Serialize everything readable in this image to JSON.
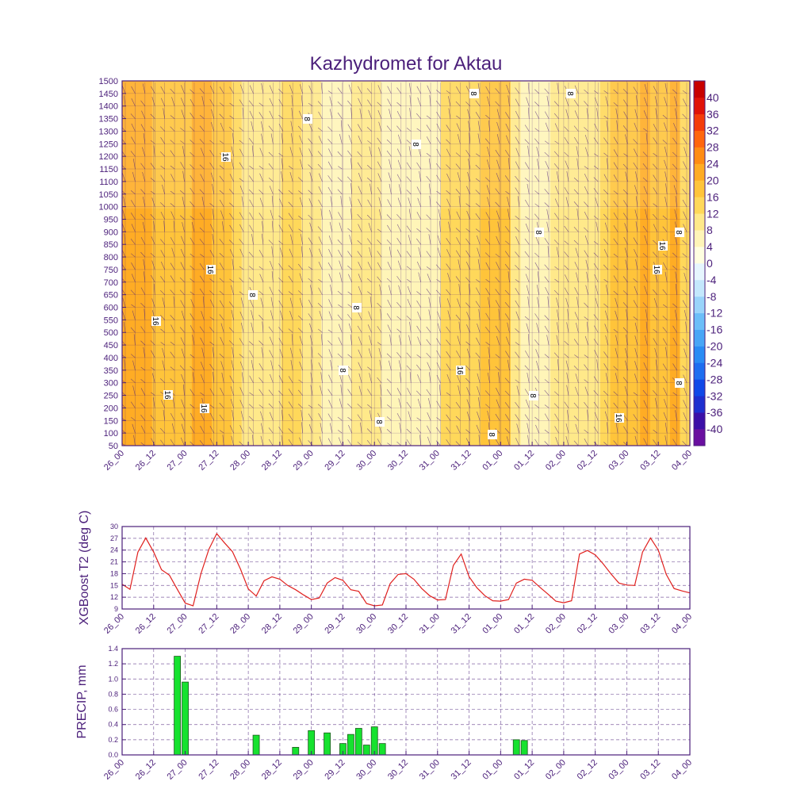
{
  "title": "Kazhydromet for Aktau",
  "colors": {
    "frame": "#4b1f7a",
    "text": "#4b1f7a",
    "grid": "#4b1f7a",
    "t2_line": "#e0201e",
    "precip_fill": "#16e22f",
    "precip_stroke": "#1a5a1a",
    "wind_barb": "#4b1f7a"
  },
  "time_labels": [
    "26_00",
    "26_12",
    "27_00",
    "27_12",
    "28_00",
    "28_12",
    "29_00",
    "29_12",
    "30_00",
    "30_12",
    "31_00",
    "31_12",
    "01_00",
    "01_12",
    "02_00",
    "02_12",
    "03_00",
    "03_12",
    "04_00"
  ],
  "chart_data": [
    {
      "type": "heatmap",
      "title": "Kazhydromet for Aktau",
      "x_axis": "time",
      "y_ticks": [
        50,
        100,
        150,
        200,
        250,
        300,
        350,
        400,
        450,
        500,
        550,
        600,
        650,
        700,
        750,
        800,
        850,
        900,
        950,
        1000,
        1050,
        1100,
        1150,
        1200,
        1250,
        1300,
        1350,
        1400,
        1450,
        1500
      ],
      "ylim": [
        50,
        1500
      ],
      "colorbar": {
        "labels": [
          "40",
          "36",
          "32",
          "28",
          "24",
          "20",
          "16",
          "12",
          "8",
          "4",
          "0",
          "-4",
          "-8",
          "-12",
          "-16",
          "-20",
          "-24",
          "-28",
          "-32",
          "-36",
          "-40"
        ],
        "colors": [
          "#6a0fa0",
          "#3b0fa8",
          "#1e2fd0",
          "#1048e8",
          "#1e6ef0",
          "#2a8cf4",
          "#48a6f6",
          "#6cbef8",
          "#9ad4fa",
          "#c4e8fc",
          "#e6f6fe",
          "#ffffe0",
          "#fff5b8",
          "#ffe98a",
          "#ffd85a",
          "#ffc43a",
          "#ffac24",
          "#ff8c14",
          "#ff660e",
          "#f43c0a",
          "#e01208",
          "#c80000"
        ],
        "bounds": [
          -40,
          -36,
          -32,
          -28,
          -24,
          -20,
          -16,
          -12,
          -8,
          -4,
          0,
          4,
          8,
          12,
          16,
          20,
          24,
          28,
          32,
          36,
          40
        ]
      },
      "contour_labels": [
        "16",
        "16",
        "16",
        "16",
        "16",
        "8",
        "8",
        "8",
        "8",
        "8",
        "8",
        "8",
        "8",
        "8",
        "16",
        "8",
        "8",
        "16",
        "16",
        "16",
        "8",
        "8"
      ],
      "columns": [
        20,
        22,
        21,
        19,
        17,
        16,
        18,
        20,
        21,
        19,
        16,
        13,
        9,
        8,
        9,
        11,
        13,
        12,
        10,
        8,
        7,
        6,
        7,
        9,
        9,
        8,
        6,
        5,
        6,
        7,
        7,
        6,
        12,
        15,
        14,
        13,
        16,
        19,
        18,
        8,
        6,
        5,
        6,
        8,
        9,
        8,
        8,
        9,
        12,
        16,
        18,
        19,
        20,
        19,
        17,
        20,
        13
      ]
    },
    {
      "type": "line",
      "ylabel": "XGBoost T2 (deg C)",
      "ylim": [
        9,
        30
      ],
      "y_ticks": [
        9,
        12,
        15,
        18,
        21,
        24,
        27,
        30
      ],
      "series": [
        {
          "values": [
            15.3,
            14.0,
            23.5,
            27.1,
            23.5,
            19.0,
            17.6,
            14.0,
            10.5,
            9.8,
            18.0,
            24.2,
            28.2,
            25.8,
            23.6,
            19.2,
            14.1,
            12.3,
            16.2,
            17.2,
            16.6,
            15.0,
            13.9,
            12.6,
            11.4,
            11.8,
            15.6,
            17.0,
            16.3,
            13.9,
            13.5,
            10.4,
            9.8,
            10.0,
            15.5,
            17.8,
            18.0,
            16.6,
            14.2,
            12.4,
            11.3,
            11.4,
            20.1,
            23.0,
            17.2,
            14.4,
            12.4,
            11.1,
            11.0,
            11.4,
            15.6,
            16.6,
            16.3,
            14.5,
            12.8,
            11.0,
            10.6,
            11.1,
            23.0,
            23.9,
            22.8,
            20.5,
            17.9,
            15.6,
            15.1,
            15.0,
            23.5,
            27.1,
            24.0,
            17.8,
            14.2,
            13.6,
            13.1
          ]
        }
      ]
    },
    {
      "type": "bar",
      "ylabel": "PRECIP, mm",
      "ylim": [
        0,
        1.4
      ],
      "y_ticks": [
        "0.0",
        "0.2",
        "0.4",
        "0.6",
        "0.8",
        "1.0",
        "1.2",
        "1.4"
      ],
      "bars": [
        {
          "t": 7,
          "v": 1.3
        },
        {
          "t": 8,
          "v": 0.96
        },
        {
          "t": 17,
          "v": 0.26
        },
        {
          "t": 22,
          "v": 0.1
        },
        {
          "t": 24,
          "v": 0.32
        },
        {
          "t": 26,
          "v": 0.29
        },
        {
          "t": 28,
          "v": 0.15
        },
        {
          "t": 29,
          "v": 0.27
        },
        {
          "t": 30,
          "v": 0.35
        },
        {
          "t": 31,
          "v": 0.13
        },
        {
          "t": 32,
          "v": 0.37
        },
        {
          "t": 33,
          "v": 0.15
        },
        {
          "t": 50,
          "v": 0.2
        },
        {
          "t": 51,
          "v": 0.19
        }
      ]
    }
  ]
}
